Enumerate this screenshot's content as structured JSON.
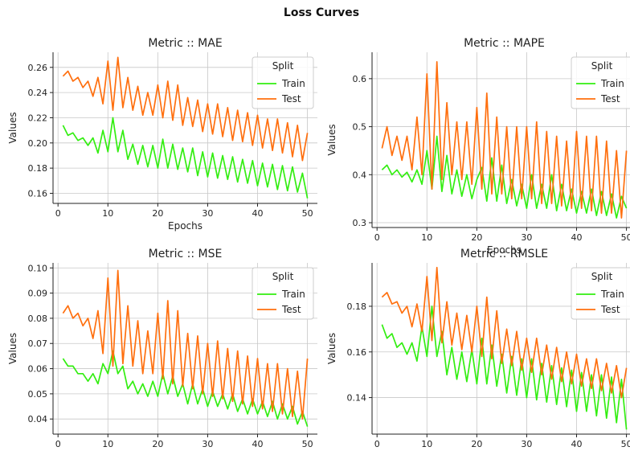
{
  "figure_title": "Loss Curves",
  "chart_data": [
    {
      "type": "line",
      "title": "Metric :: MAE",
      "xlabel": "Epochs",
      "ylabel": "Values",
      "xlim": [
        -1,
        52
      ],
      "ylim": [
        0.152,
        0.272
      ],
      "xticks": [
        0,
        10,
        20,
        30,
        40,
        50
      ],
      "yticks": [
        0.16,
        0.18,
        0.2,
        0.22,
        0.24,
        0.26
      ],
      "ytick_labels": [
        "0.16",
        "0.18",
        "0.20",
        "0.22",
        "0.24",
        "0.26"
      ],
      "grid": true,
      "legend": {
        "title": "Split",
        "placement": "top-right"
      },
      "x": [
        1,
        2,
        3,
        4,
        5,
        6,
        7,
        8,
        9,
        10,
        11,
        12,
        13,
        14,
        15,
        16,
        17,
        18,
        19,
        20,
        21,
        22,
        23,
        24,
        25,
        26,
        27,
        28,
        29,
        30,
        31,
        32,
        33,
        34,
        35,
        36,
        37,
        38,
        39,
        40,
        41,
        42,
        43,
        44,
        45,
        46,
        47,
        48,
        49,
        50
      ],
      "series": [
        {
          "name": "Train",
          "color": "#33ee11",
          "values": [
            0.214,
            0.206,
            0.208,
            0.202,
            0.204,
            0.198,
            0.204,
            0.192,
            0.21,
            0.193,
            0.22,
            0.193,
            0.21,
            0.187,
            0.199,
            0.183,
            0.198,
            0.181,
            0.198,
            0.18,
            0.203,
            0.18,
            0.199,
            0.179,
            0.196,
            0.177,
            0.196,
            0.174,
            0.193,
            0.173,
            0.192,
            0.172,
            0.19,
            0.171,
            0.189,
            0.169,
            0.187,
            0.168,
            0.186,
            0.166,
            0.184,
            0.165,
            0.183,
            0.163,
            0.182,
            0.162,
            0.181,
            0.161,
            0.176,
            0.156
          ]
        },
        {
          "name": "Test",
          "color": "#ff6f0e",
          "values": [
            0.253,
            0.257,
            0.249,
            0.252,
            0.244,
            0.249,
            0.237,
            0.252,
            0.231,
            0.265,
            0.226,
            0.268,
            0.228,
            0.252,
            0.226,
            0.245,
            0.222,
            0.24,
            0.222,
            0.246,
            0.22,
            0.249,
            0.218,
            0.246,
            0.214,
            0.236,
            0.213,
            0.234,
            0.209,
            0.231,
            0.207,
            0.231,
            0.205,
            0.228,
            0.202,
            0.226,
            0.201,
            0.224,
            0.198,
            0.222,
            0.196,
            0.219,
            0.194,
            0.219,
            0.192,
            0.216,
            0.189,
            0.214,
            0.186,
            0.208
          ]
        }
      ]
    },
    {
      "type": "line",
      "title": "Metric :: MAPE",
      "xlabel": "Epochs",
      "ylabel": "Values",
      "xlim": [
        -1,
        52
      ],
      "ylim": [
        0.29,
        0.655
      ],
      "xticks": [
        0,
        10,
        20,
        30,
        40,
        50
      ],
      "yticks": [
        0.3,
        0.4,
        0.5,
        0.6
      ],
      "ytick_labels": [
        "0.3",
        "0.4",
        "0.5",
        "0.6"
      ],
      "grid": true,
      "legend": {
        "title": "Split",
        "placement": "top-right"
      },
      "x": [
        1,
        2,
        3,
        4,
        5,
        6,
        7,
        8,
        9,
        10,
        11,
        12,
        13,
        14,
        15,
        16,
        17,
        18,
        19,
        20,
        21,
        22,
        23,
        24,
        25,
        26,
        27,
        28,
        29,
        30,
        31,
        32,
        33,
        34,
        35,
        36,
        37,
        38,
        39,
        40,
        41,
        42,
        43,
        44,
        45,
        46,
        47,
        48,
        49,
        50
      ],
      "series": [
        {
          "name": "Train",
          "color": "#33ee11",
          "values": [
            0.41,
            0.42,
            0.4,
            0.41,
            0.395,
            0.405,
            0.385,
            0.41,
            0.38,
            0.45,
            0.37,
            0.48,
            0.365,
            0.44,
            0.36,
            0.41,
            0.355,
            0.4,
            0.35,
            0.39,
            0.415,
            0.345,
            0.435,
            0.345,
            0.42,
            0.34,
            0.39,
            0.335,
            0.38,
            0.33,
            0.4,
            0.33,
            0.38,
            0.33,
            0.4,
            0.325,
            0.38,
            0.325,
            0.37,
            0.32,
            0.365,
            0.32,
            0.37,
            0.315,
            0.365,
            0.315,
            0.36,
            0.31,
            0.355,
            0.33
          ]
        },
        {
          "name": "Test",
          "color": "#ff6f0e",
          "values": [
            0.455,
            0.5,
            0.44,
            0.48,
            0.43,
            0.48,
            0.41,
            0.52,
            0.4,
            0.61,
            0.37,
            0.635,
            0.39,
            0.55,
            0.4,
            0.51,
            0.39,
            0.51,
            0.38,
            0.54,
            0.37,
            0.57,
            0.36,
            0.52,
            0.36,
            0.5,
            0.35,
            0.5,
            0.35,
            0.5,
            0.35,
            0.51,
            0.34,
            0.49,
            0.34,
            0.48,
            0.335,
            0.47,
            0.33,
            0.49,
            0.33,
            0.48,
            0.325,
            0.48,
            0.32,
            0.47,
            0.32,
            0.45,
            0.31,
            0.45
          ]
        }
      ]
    },
    {
      "type": "line",
      "title": "Metric :: MSE",
      "xlabel": "Epochs",
      "ylabel": "Values",
      "xlim": [
        -1,
        52
      ],
      "ylim": [
        0.034,
        0.102
      ],
      "xticks": [
        0,
        10,
        20,
        30,
        40,
        50
      ],
      "yticks": [
        0.04,
        0.05,
        0.06,
        0.07,
        0.08,
        0.09,
        0.1
      ],
      "ytick_labels": [
        "0.04",
        "0.05",
        "0.06",
        "0.07",
        "0.08",
        "0.09",
        "0.10"
      ],
      "grid": true,
      "legend": {
        "title": "Split",
        "placement": "top-right"
      },
      "x": [
        1,
        2,
        3,
        4,
        5,
        6,
        7,
        8,
        9,
        10,
        11,
        12,
        13,
        14,
        15,
        16,
        17,
        18,
        19,
        20,
        21,
        22,
        23,
        24,
        25,
        26,
        27,
        28,
        29,
        30,
        31,
        32,
        33,
        34,
        35,
        36,
        37,
        38,
        39,
        40,
        41,
        42,
        43,
        44,
        45,
        46,
        47,
        48,
        49,
        50
      ],
      "series": [
        {
          "name": "Train",
          "color": "#33ee11",
          "values": [
            0.064,
            0.061,
            0.061,
            0.058,
            0.058,
            0.055,
            0.058,
            0.054,
            0.062,
            0.058,
            0.067,
            0.058,
            0.061,
            0.052,
            0.055,
            0.05,
            0.054,
            0.049,
            0.055,
            0.049,
            0.058,
            0.05,
            0.057,
            0.049,
            0.054,
            0.046,
            0.054,
            0.046,
            0.052,
            0.045,
            0.051,
            0.045,
            0.05,
            0.044,
            0.05,
            0.043,
            0.048,
            0.042,
            0.048,
            0.042,
            0.047,
            0.041,
            0.047,
            0.04,
            0.046,
            0.04,
            0.045,
            0.038,
            0.043,
            0.037
          ]
        },
        {
          "name": "Test",
          "color": "#ff6f0e",
          "values": [
            0.082,
            0.085,
            0.08,
            0.082,
            0.077,
            0.08,
            0.072,
            0.083,
            0.066,
            0.096,
            0.061,
            0.099,
            0.062,
            0.085,
            0.061,
            0.079,
            0.058,
            0.075,
            0.058,
            0.082,
            0.056,
            0.087,
            0.054,
            0.083,
            0.053,
            0.074,
            0.052,
            0.073,
            0.05,
            0.07,
            0.049,
            0.071,
            0.048,
            0.068,
            0.047,
            0.067,
            0.046,
            0.065,
            0.045,
            0.064,
            0.044,
            0.062,
            0.043,
            0.062,
            0.042,
            0.06,
            0.041,
            0.059,
            0.04,
            0.064
          ]
        }
      ]
    },
    {
      "type": "line",
      "title": "Metric :: RMSLE",
      "xlabel": "Epochs",
      "ylabel": "Values",
      "xlim": [
        -1,
        52
      ],
      "ylim": [
        0.124,
        0.199
      ],
      "xticks": [
        0,
        10,
        20,
        30,
        40,
        50
      ],
      "yticks": [
        0.14,
        0.16,
        0.18
      ],
      "ytick_labels": [
        "0.14",
        "0.16",
        "0.18"
      ],
      "grid": true,
      "legend": {
        "title": "Split",
        "placement": "top-right"
      },
      "x": [
        1,
        2,
        3,
        4,
        5,
        6,
        7,
        8,
        9,
        10,
        11,
        12,
        13,
        14,
        15,
        16,
        17,
        18,
        19,
        20,
        21,
        22,
        23,
        24,
        25,
        26,
        27,
        28,
        29,
        30,
        31,
        32,
        33,
        34,
        35,
        36,
        37,
        38,
        39,
        40,
        41,
        42,
        43,
        44,
        45,
        46,
        47,
        48,
        49,
        50
      ],
      "series": [
        {
          "name": "Train",
          "color": "#33ee11",
          "values": [
            0.172,
            0.166,
            0.168,
            0.162,
            0.164,
            0.159,
            0.164,
            0.156,
            0.171,
            0.158,
            0.18,
            0.158,
            0.169,
            0.15,
            0.162,
            0.148,
            0.16,
            0.147,
            0.161,
            0.146,
            0.166,
            0.146,
            0.163,
            0.145,
            0.159,
            0.142,
            0.158,
            0.141,
            0.157,
            0.14,
            0.157,
            0.139,
            0.155,
            0.138,
            0.154,
            0.137,
            0.153,
            0.136,
            0.152,
            0.134,
            0.151,
            0.134,
            0.15,
            0.132,
            0.15,
            0.131,
            0.149,
            0.129,
            0.148,
            0.126
          ]
        },
        {
          "name": "Test",
          "color": "#ff6f0e",
          "values": [
            0.184,
            0.186,
            0.181,
            0.182,
            0.177,
            0.18,
            0.171,
            0.181,
            0.169,
            0.193,
            0.165,
            0.197,
            0.164,
            0.182,
            0.163,
            0.177,
            0.161,
            0.176,
            0.16,
            0.18,
            0.158,
            0.184,
            0.157,
            0.178,
            0.155,
            0.17,
            0.154,
            0.169,
            0.152,
            0.166,
            0.151,
            0.166,
            0.15,
            0.163,
            0.148,
            0.162,
            0.147,
            0.16,
            0.146,
            0.159,
            0.145,
            0.157,
            0.144,
            0.157,
            0.143,
            0.155,
            0.142,
            0.154,
            0.14,
            0.153
          ]
        }
      ]
    }
  ]
}
